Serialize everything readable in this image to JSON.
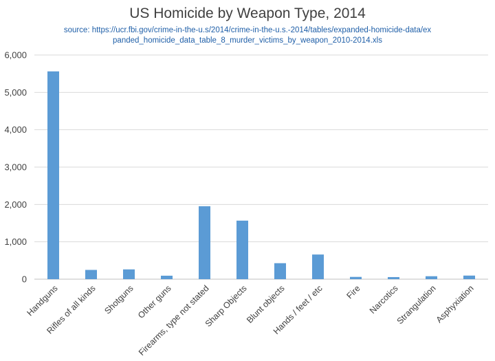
{
  "chart_data": {
    "type": "bar",
    "title": "US Homicide by Weapon Type, 2014",
    "subtitle": "source: https://ucr.fbi.gov/crime-in-the-u.s/2014/crime-in-the-u.s.-2014/tables/expanded-homicide-data/expanded_homicide_data_table_8_murder_victims_by_weapon_2010-2014.xls",
    "categories": [
      "Handguns",
      "Rifles of all kinds",
      "Shotguns",
      "Other guns",
      "Firearms, type not stated",
      "Sharp Objects",
      "Blunt objects",
      "Hands / feet / etc",
      "Fire",
      "Narcotics",
      "Strangulation",
      "Asphyxiation"
    ],
    "values": [
      5562,
      248,
      262,
      93,
      1953,
      1567,
      428,
      660,
      61,
      56,
      79,
      96
    ],
    "yticks": [
      "0",
      "1,000",
      "2,000",
      "3,000",
      "4,000",
      "5,000",
      "6,000"
    ],
    "ylim": [
      0,
      6000
    ],
    "grid": true,
    "bar_color": "#5b9bd5",
    "grid_color": "#d9d9d9"
  }
}
